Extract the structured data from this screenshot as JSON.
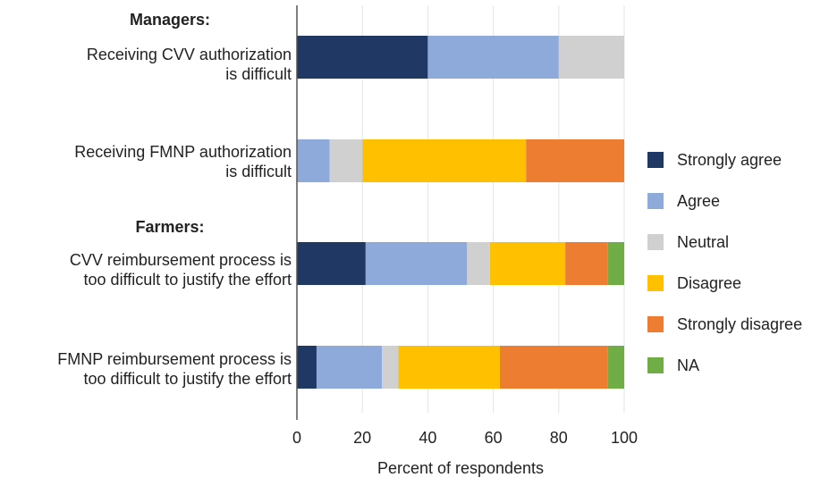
{
  "chart_data": {
    "type": "bar",
    "orientation": "horizontal",
    "stacked": true,
    "groups": [
      "Managers:",
      "Farmers:"
    ],
    "categories": [
      "Receiving CVV authorization\nis difficult",
      "Receiving FMNP authorization\nis difficult",
      "CVV reimbursement process is\ntoo difficult to justify the effort",
      "FMNP reimbursement process is\ntoo difficult to justify the effort"
    ],
    "series": [
      {
        "name": "Strongly agree",
        "color": "#1f3864",
        "values": [
          40,
          0,
          21,
          6
        ]
      },
      {
        "name": "Agree",
        "color": "#8eaadb",
        "values": [
          40,
          10,
          31,
          20
        ]
      },
      {
        "name": "Neutral",
        "color": "#d0d0d0",
        "values": [
          20,
          10,
          7,
          5
        ]
      },
      {
        "name": "Disagree",
        "color": "#ffc000",
        "values": [
          0,
          50,
          23,
          31
        ]
      },
      {
        "name": "Strongly disagree",
        "color": "#ed7d31",
        "values": [
          0,
          30,
          13,
          33
        ]
      },
      {
        "name": "NA",
        "color": "#70ad47",
        "values": [
          0,
          0,
          5,
          5
        ]
      }
    ],
    "xlabel": "Percent of respondents",
    "xlim": [
      0,
      100
    ],
    "xticks": [
      0,
      20,
      40,
      60,
      80,
      100
    ],
    "grid": true,
    "legend_position": "right"
  }
}
